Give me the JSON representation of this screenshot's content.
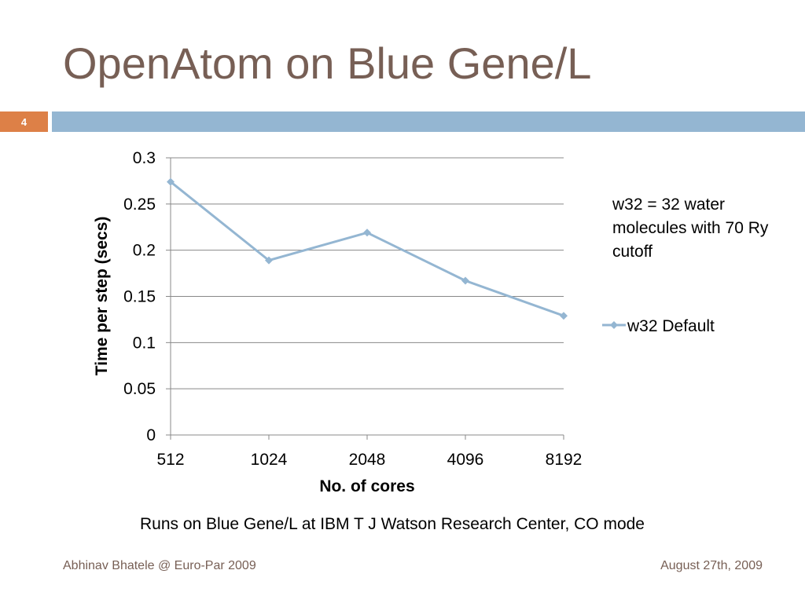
{
  "slide": {
    "title": "OpenAtom on Blue Gene/L",
    "number": "4",
    "annotation": "w32 = 32 water molecules with 70 Ry cutoff",
    "caption": "Runs on Blue Gene/L at IBM T J Watson Research Center, CO mode",
    "footer_left": "Abhinav Bhatele @ Euro-Par 2009",
    "footer_right": "August 27th, 2009"
  },
  "colors": {
    "title": "#775f55",
    "accent_bar": "#94b6d2",
    "slide_number_bg": "#dd8047",
    "series": "#94b6d2",
    "gridline": "#888888"
  },
  "chart_data": {
    "type": "line",
    "title": "",
    "xlabel": "No. of cores",
    "ylabel": "Time per step (secs)",
    "categories": [
      "512",
      "1024",
      "2048",
      "4096",
      "8192"
    ],
    "series": [
      {
        "name": "w32 Default",
        "values": [
          0.274,
          0.189,
          0.219,
          0.167,
          0.129
        ]
      }
    ],
    "ylim": [
      0,
      0.3
    ],
    "yticks": [
      "0",
      "0.05",
      "0.1",
      "0.15",
      "0.2",
      "0.25",
      "0.3"
    ],
    "grid": true,
    "legend": "right"
  }
}
